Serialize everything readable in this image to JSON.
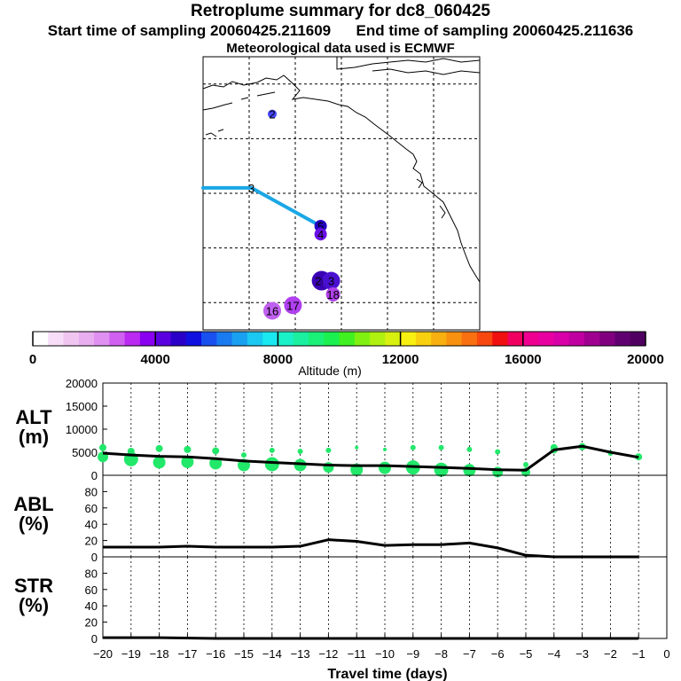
{
  "titles": {
    "main": "Retroplume summary for dc8_060425",
    "start_label": "Start time of sampling 20060425.211609",
    "end_label": "End time of sampling 20060425.211636",
    "met": "Meteorological data used is ECMWF"
  },
  "colors": {
    "trajectory": "#1aa7e6",
    "dots": "#22e86a",
    "line": "#000000",
    "colorbar": [
      "#ffffff",
      "#f7ddf7",
      "#f0c6f0",
      "#e9aef0",
      "#e090f0",
      "#d060f0",
      "#bb2af0",
      "#8a00f0",
      "#5a00e0",
      "#2a00c8",
      "#1010e0",
      "#1a50f0",
      "#1a7af0",
      "#1aa0f0",
      "#1ac8f0",
      "#1ae8f0",
      "#1af0c8",
      "#1af0a0",
      "#1af078",
      "#1af050",
      "#40f020",
      "#80f010",
      "#b0f010",
      "#d8f010",
      "#f8f010",
      "#f8d010",
      "#f8b010",
      "#f89010",
      "#f87010",
      "#f84810",
      "#f01010",
      "#f00060",
      "#f00090",
      "#e800a0",
      "#d800a8",
      "#c000a0",
      "#a00090",
      "#800080",
      "#600070",
      "#500060"
    ]
  },
  "map": {
    "markers": [
      {
        "label": "2",
        "lat": 59.5,
        "lon": 195,
        "color": "#4646ff",
        "size": 5
      },
      {
        "label": "3",
        "lat": 46,
        "lon": 190.5,
        "color": "#1aa7e6",
        "size": 0
      },
      {
        "label": "5",
        "lat": 39,
        "lon": 205.5,
        "color": "#2200c0",
        "size": 7
      },
      {
        "label": "4",
        "lat": 37.5,
        "lon": 205.5,
        "color": "#6a10e8",
        "size": 7
      },
      {
        "label": "20",
        "lat": 29,
        "lon": 205.7,
        "color": "#3a00b4",
        "size": 11
      },
      {
        "label": "3",
        "lat": 29,
        "lon": 207.8,
        "color": "#4a10d0",
        "size": 10
      },
      {
        "label": "18",
        "lat": 26.5,
        "lon": 208.2,
        "color": "#b040e8",
        "size": 8
      },
      {
        "label": "17",
        "lat": 24.5,
        "lon": 199.5,
        "color": "#b040f0",
        "size": 10
      },
      {
        "label": "16",
        "lat": 23.5,
        "lon": 195,
        "color": "#c060f0",
        "size": 10
      }
    ],
    "track": [
      [
        46,
        180
      ],
      [
        46,
        190.5
      ],
      [
        39,
        205.5
      ]
    ]
  },
  "colorbar": {
    "label": "Altitude (m)",
    "ticks": [
      "0",
      "4000",
      "8000",
      "12000",
      "16000",
      "20000"
    ]
  },
  "chart_data": [
    {
      "type": "line",
      "panel": "ALT",
      "ylabel": "ALT\n(m)",
      "xlabel": "Travel time (days)",
      "x": [
        -20,
        -19,
        -18,
        -17,
        -16,
        -15,
        -14,
        -13,
        -12,
        -11,
        -10,
        -9,
        -8,
        -7,
        -6,
        -5,
        -4,
        -3,
        -2,
        -1
      ],
      "y": [
        4800,
        4400,
        4100,
        4000,
        3600,
        3100,
        2800,
        2500,
        2200,
        2100,
        2100,
        1900,
        1700,
        1500,
        1200,
        1100,
        5500,
        6300,
        5000,
        3900
      ],
      "xlim": [
        -20,
        0
      ],
      "ylim": [
        0,
        20000
      ],
      "yticks": [
        0,
        5000,
        10000,
        15000,
        20000
      ],
      "spread_dots": [
        {
          "x": -20,
          "y": 6000,
          "r": 4
        },
        {
          "x": -20,
          "y": 4000,
          "r": 6
        },
        {
          "x": -19,
          "y": 5200,
          "r": 4
        },
        {
          "x": -19,
          "y": 3500,
          "r": 8
        },
        {
          "x": -18,
          "y": 5800,
          "r": 4
        },
        {
          "x": -18,
          "y": 2800,
          "r": 7
        },
        {
          "x": -17,
          "y": 5600,
          "r": 4
        },
        {
          "x": -17,
          "y": 2900,
          "r": 7
        },
        {
          "x": -16,
          "y": 5300,
          "r": 4
        },
        {
          "x": -16,
          "y": 2600,
          "r": 7
        },
        {
          "x": -15,
          "y": 4400,
          "r": 3
        },
        {
          "x": -15,
          "y": 2200,
          "r": 7
        },
        {
          "x": -14,
          "y": 5400,
          "r": 3
        },
        {
          "x": -14,
          "y": 2400,
          "r": 8
        },
        {
          "x": -13,
          "y": 5200,
          "r": 3
        },
        {
          "x": -13,
          "y": 2200,
          "r": 7
        },
        {
          "x": -12,
          "y": 5400,
          "r": 3
        },
        {
          "x": -12,
          "y": 1700,
          "r": 6
        },
        {
          "x": -11,
          "y": 6000,
          "r": 2
        },
        {
          "x": -11,
          "y": 1200,
          "r": 7
        },
        {
          "x": -10,
          "y": 5600,
          "r": 2
        },
        {
          "x": -10,
          "y": 1600,
          "r": 7
        },
        {
          "x": -9,
          "y": 6000,
          "r": 3
        },
        {
          "x": -9,
          "y": 1700,
          "r": 8
        },
        {
          "x": -8,
          "y": 6000,
          "r": 3
        },
        {
          "x": -8,
          "y": 1200,
          "r": 8
        },
        {
          "x": -7,
          "y": 5600,
          "r": 3
        },
        {
          "x": -7,
          "y": 1100,
          "r": 7
        },
        {
          "x": -6,
          "y": 5100,
          "r": 3
        },
        {
          "x": -6,
          "y": 700,
          "r": 6
        },
        {
          "x": -5,
          "y": 2300,
          "r": 3
        },
        {
          "x": -5,
          "y": 700,
          "r": 5
        },
        {
          "x": -4,
          "y": 6000,
          "r": 4
        },
        {
          "x": -4,
          "y": 5500,
          "r": 4
        },
        {
          "x": -3,
          "y": 6200,
          "r": 4
        },
        {
          "x": -2,
          "y": 4800,
          "r": 3
        },
        {
          "x": -1,
          "y": 4000,
          "r": 4
        }
      ]
    },
    {
      "type": "line",
      "panel": "ABL",
      "ylabel": "ABL\n(%)",
      "x": [
        -20,
        -19,
        -18,
        -17,
        -16,
        -15,
        -14,
        -13,
        -12,
        -11,
        -10,
        -9,
        -8,
        -7,
        -6,
        -5,
        -4,
        -3,
        -2,
        -1
      ],
      "y": [
        12,
        12,
        12,
        13,
        12,
        12,
        12,
        13,
        21,
        19,
        14,
        15,
        15,
        17,
        11,
        2,
        0,
        0,
        0,
        0
      ],
      "xlim": [
        -20,
        0
      ],
      "ylim": [
        0,
        100
      ],
      "yticks": [
        0,
        20,
        40,
        60,
        80
      ]
    },
    {
      "type": "line",
      "panel": "STR",
      "ylabel": "STR\n(%)",
      "x": [
        -20,
        -18,
        -16,
        -14,
        -12,
        -10,
        -8,
        -6,
        -4,
        -2,
        -1
      ],
      "y": [
        1,
        1,
        0,
        0,
        0,
        0,
        0,
        0,
        0,
        0,
        0
      ],
      "xlim": [
        -20,
        0
      ],
      "ylim": [
        0,
        100
      ],
      "yticks": [
        0,
        20,
        40,
        60,
        80
      ],
      "xticks": [
        -20,
        -19,
        -18,
        -17,
        -16,
        -15,
        -14,
        -13,
        -12,
        -11,
        -10,
        -9,
        -8,
        -7,
        -6,
        -5,
        -4,
        -3,
        -2,
        -1,
        0
      ]
    }
  ]
}
